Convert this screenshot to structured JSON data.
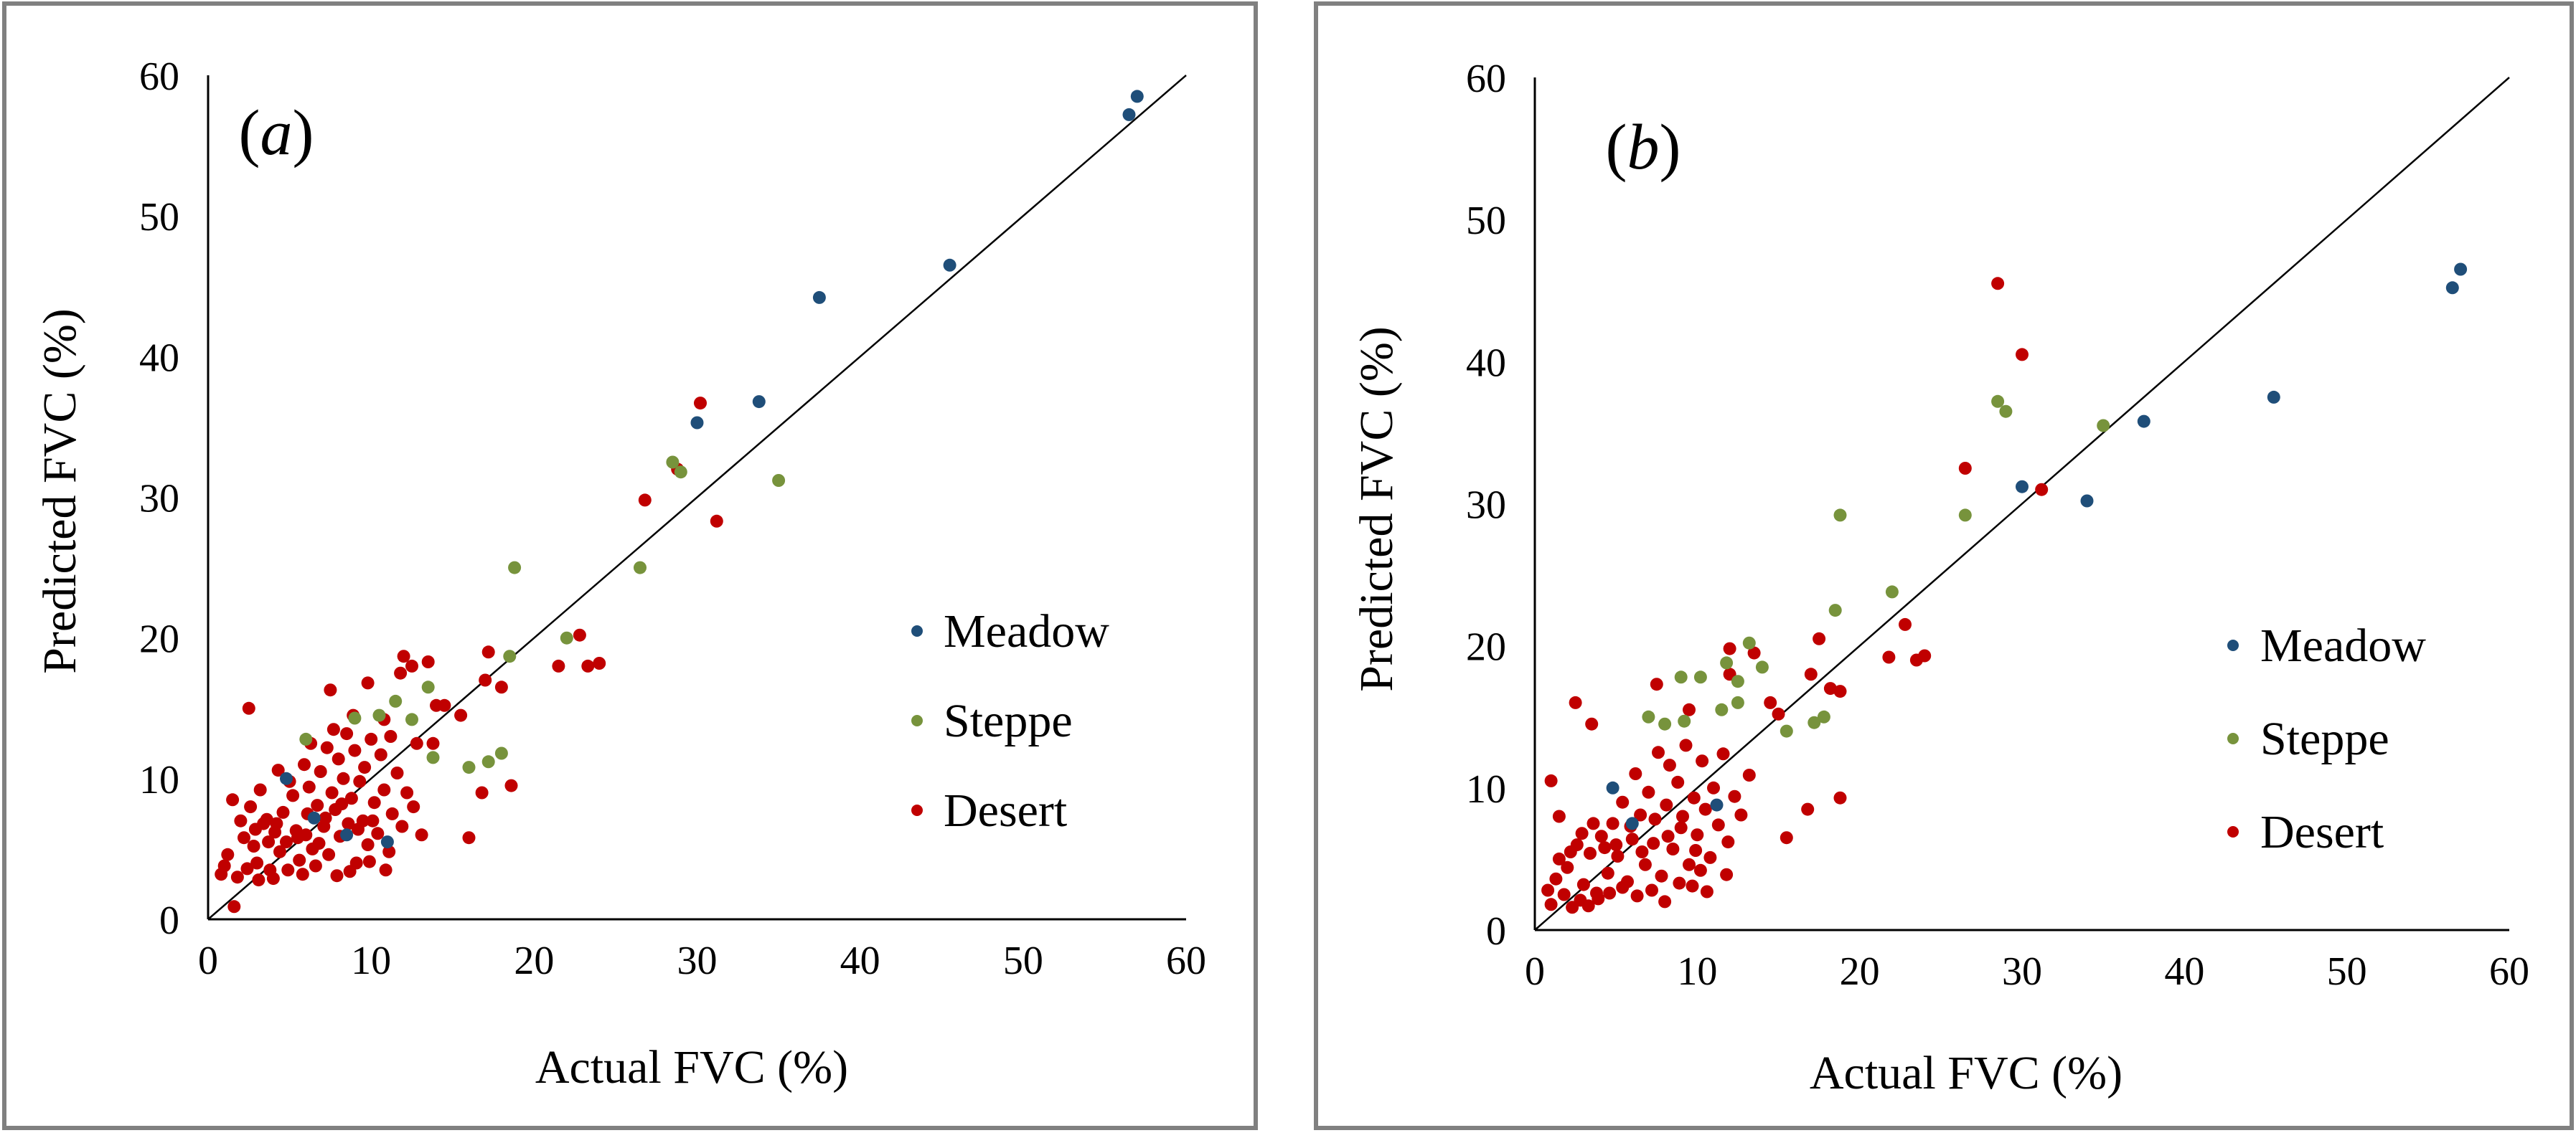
{
  "colors": {
    "meadow": "#1F4E79",
    "steppe": "#77933C",
    "desert": "#C00000",
    "frame": "#808080",
    "line": "#000000"
  },
  "chart_data": [
    {
      "type": "scatter",
      "panel_label": "a",
      "xlabel": "Actual  FVC (%)",
      "ylabel": "Predicted  FVC (%)",
      "xlim": [
        0,
        60
      ],
      "ylim": [
        0,
        60
      ],
      "xticks": [
        "0",
        "10",
        "20",
        "30",
        "40",
        "50",
        "60"
      ],
      "yticks": [
        "0",
        "10",
        "20",
        "30",
        "40",
        "50",
        "60"
      ],
      "reference_line": "1:1",
      "legend": [
        "Meadow",
        "Steppe",
        "Desert"
      ],
      "series": [
        {
          "name": "Meadow",
          "points": [
            [
              57.0,
              58.5
            ],
            [
              56.5,
              57.2
            ],
            [
              45.5,
              46.5
            ],
            [
              37.5,
              44.2
            ],
            [
              33.8,
              36.8
            ],
            [
              30.0,
              35.3
            ],
            [
              4.8,
              10.0
            ],
            [
              6.5,
              7.2
            ],
            [
              8.5,
              6.0
            ],
            [
              11.0,
              5.5
            ]
          ]
        },
        {
          "name": "Steppe",
          "points": [
            [
              28.5,
              32.5
            ],
            [
              29.0,
              31.8
            ],
            [
              35.0,
              31.2
            ],
            [
              18.8,
              25.0
            ],
            [
              26.5,
              25.0
            ],
            [
              22.0,
              20.0
            ],
            [
              18.5,
              18.7
            ],
            [
              13.5,
              16.5
            ],
            [
              11.5,
              15.5
            ],
            [
              12.5,
              14.2
            ],
            [
              13.8,
              11.5
            ],
            [
              16.0,
              10.8
            ],
            [
              17.2,
              11.2
            ],
            [
              18.0,
              11.8
            ],
            [
              10.5,
              14.5
            ],
            [
              9.0,
              14.3
            ],
            [
              6.0,
              12.8
            ]
          ]
        },
        {
          "name": "Desert",
          "points": [
            [
              30.2,
              36.7
            ],
            [
              28.8,
              32.0
            ],
            [
              26.8,
              29.8
            ],
            [
              31.2,
              28.3
            ],
            [
              22.8,
              20.2
            ],
            [
              21.5,
              18.0
            ],
            [
              23.3,
              18.0
            ],
            [
              24.0,
              18.2
            ],
            [
              17.2,
              19.0
            ],
            [
              17.0,
              17.0
            ],
            [
              18.0,
              16.5
            ],
            [
              16.8,
              9.0
            ],
            [
              18.6,
              9.5
            ],
            [
              16.0,
              5.8
            ],
            [
              15.5,
              14.5
            ],
            [
              12.0,
              18.7
            ],
            [
              13.5,
              18.3
            ],
            [
              14.0,
              15.2
            ],
            [
              14.5,
              15.2
            ],
            [
              13.8,
              12.5
            ],
            [
              2.5,
              15.0
            ],
            [
              1.6,
              0.9
            ],
            [
              0.8,
              3.2
            ],
            [
              1.5,
              8.5
            ],
            [
              12.5,
              18.0
            ],
            [
              11.8,
              17.5
            ],
            [
              7.5,
              16.3
            ],
            [
              9.8,
              16.8
            ],
            [
              10.8,
              14.2
            ],
            [
              11.2,
              13.0
            ],
            [
              12.8,
              12.5
            ],
            [
              2.0,
              7.0
            ],
            [
              2.2,
              5.8
            ],
            [
              2.8,
              5.2
            ],
            [
              3.0,
              4.0
            ],
            [
              3.4,
              6.8
            ],
            [
              3.6,
              7.1
            ],
            [
              3.8,
              3.5
            ],
            [
              4.1,
              6.2
            ],
            [
              4.4,
              4.8
            ],
            [
              4.6,
              7.6
            ],
            [
              4.8,
              5.5
            ],
            [
              5.2,
              8.8
            ],
            [
              5.4,
              6.3
            ],
            [
              5.6,
              4.2
            ],
            [
              5.9,
              11.0
            ],
            [
              6.1,
              7.5
            ],
            [
              6.2,
              9.4
            ],
            [
              6.4,
              5.0
            ],
            [
              6.7,
              8.1
            ],
            [
              6.9,
              10.5
            ],
            [
              7.1,
              6.6
            ],
            [
              7.3,
              12.2
            ],
            [
              7.4,
              4.6
            ],
            [
              7.6,
              9.0
            ],
            [
              7.8,
              7.8
            ],
            [
              8.0,
              11.4
            ],
            [
              8.1,
              5.9
            ],
            [
              8.3,
              10.0
            ],
            [
              8.5,
              13.2
            ],
            [
              8.6,
              6.8
            ],
            [
              8.8,
              8.6
            ],
            [
              9.0,
              12.0
            ],
            [
              9.1,
              4.0
            ],
            [
              9.3,
              9.8
            ],
            [
              9.5,
              7.0
            ],
            [
              9.6,
              10.8
            ],
            [
              9.8,
              5.3
            ],
            [
              10.0,
              12.8
            ],
            [
              10.2,
              8.3
            ],
            [
              10.4,
              6.1
            ],
            [
              10.6,
              11.7
            ],
            [
              10.8,
              9.2
            ],
            [
              11.1,
              4.8
            ],
            [
              11.3,
              7.5
            ],
            [
              11.6,
              10.4
            ],
            [
              11.9,
              6.6
            ],
            [
              12.2,
              9.0
            ],
            [
              12.6,
              8.0
            ],
            [
              13.1,
              6.0
            ],
            [
              6.3,
              12.5
            ],
            [
              7.7,
              13.5
            ],
            [
              8.9,
              14.5
            ],
            [
              5.0,
              9.8
            ],
            [
              4.3,
              10.6
            ],
            [
              3.2,
              9.2
            ],
            [
              2.6,
              8.0
            ],
            [
              1.2,
              4.6
            ],
            [
              1.0,
              3.8
            ],
            [
              1.8,
              3.0
            ],
            [
              2.4,
              3.6
            ],
            [
              3.1,
              2.8
            ],
            [
              4.0,
              2.9
            ],
            [
              4.9,
              3.5
            ],
            [
              5.8,
              3.2
            ],
            [
              6.6,
              3.8
            ],
            [
              7.9,
              3.1
            ],
            [
              8.7,
              3.4
            ],
            [
              9.9,
              4.1
            ],
            [
              10.9,
              3.5
            ],
            [
              6.0,
              6.0
            ],
            [
              6.8,
              5.4
            ],
            [
              7.2,
              7.2
            ],
            [
              8.2,
              8.2
            ],
            [
              9.2,
              6.4
            ],
            [
              10.1,
              7.0
            ],
            [
              5.5,
              5.8
            ],
            [
              4.2,
              6.8
            ],
            [
              3.7,
              5.5
            ],
            [
              2.9,
              6.4
            ]
          ]
        }
      ]
    },
    {
      "type": "scatter",
      "panel_label": "b",
      "xlabel": "Actual  FVC (%)",
      "ylabel": "Predicted  FVC (%)",
      "xlim": [
        0,
        60
      ],
      "ylim": [
        0,
        60
      ],
      "xticks": [
        "0",
        "10",
        "20",
        "30",
        "40",
        "50",
        "60"
      ],
      "yticks": [
        "0",
        "10",
        "20",
        "30",
        "40",
        "50",
        "60"
      ],
      "reference_line": "1:1",
      "legend": [
        "Meadow",
        "Steppe",
        "Desert"
      ],
      "series": [
        {
          "name": "Meadow",
          "points": [
            [
              57.0,
              46.5
            ],
            [
              56.5,
              45.2
            ],
            [
              45.5,
              37.5
            ],
            [
              37.5,
              35.8
            ],
            [
              34.0,
              30.2
            ],
            [
              30.0,
              31.2
            ],
            [
              11.2,
              8.8
            ],
            [
              4.8,
              10.0
            ],
            [
              6.0,
              7.5
            ]
          ]
        },
        {
          "name": "Steppe",
          "points": [
            [
              28.5,
              37.2
            ],
            [
              29.0,
              36.5
            ],
            [
              35.0,
              35.5
            ],
            [
              18.8,
              29.2
            ],
            [
              26.5,
              29.2
            ],
            [
              22.0,
              23.8
            ],
            [
              18.5,
              22.5
            ],
            [
              13.2,
              20.2
            ],
            [
              11.8,
              18.8
            ],
            [
              14.0,
              18.5
            ],
            [
              12.5,
              17.5
            ],
            [
              9.0,
              17.8
            ],
            [
              10.2,
              17.8
            ],
            [
              11.5,
              15.5
            ],
            [
              17.8,
              15.0
            ],
            [
              17.2,
              14.6
            ],
            [
              15.5,
              14.0
            ],
            [
              8.0,
              14.5
            ],
            [
              7.0,
              15.0
            ],
            [
              9.2,
              14.7
            ],
            [
              12.5,
              16.0
            ]
          ]
        },
        {
          "name": "Desert",
          "points": [
            [
              28.5,
              45.5
            ],
            [
              30.0,
              40.5
            ],
            [
              26.5,
              32.5
            ],
            [
              31.2,
              31.0
            ],
            [
              22.8,
              21.5
            ],
            [
              23.5,
              19.0
            ],
            [
              24.0,
              19.3
            ],
            [
              21.8,
              19.2
            ],
            [
              17.5,
              20.5
            ],
            [
              18.2,
              17.0
            ],
            [
              18.8,
              16.8
            ],
            [
              17.0,
              18.0
            ],
            [
              18.8,
              9.3
            ],
            [
              16.8,
              8.5
            ],
            [
              15.5,
              6.5
            ],
            [
              15.0,
              15.2
            ],
            [
              12.0,
              19.8
            ],
            [
              12.0,
              18.0
            ],
            [
              13.5,
              19.5
            ],
            [
              14.5,
              16.0
            ],
            [
              7.5,
              17.3
            ],
            [
              9.5,
              15.5
            ],
            [
              2.5,
              16.0
            ],
            [
              1.0,
              10.5
            ],
            [
              1.5,
              8.0
            ],
            [
              3.5,
              14.5
            ],
            [
              1.5,
              5.0
            ],
            [
              2.0,
              4.4
            ],
            [
              2.6,
              6.0
            ],
            [
              3.0,
              3.2
            ],
            [
              3.4,
              5.4
            ],
            [
              3.8,
              2.6
            ],
            [
              4.1,
              6.6
            ],
            [
              4.5,
              4.0
            ],
            [
              4.8,
              7.5
            ],
            [
              5.1,
              5.2
            ],
            [
              5.4,
              9.0
            ],
            [
              5.7,
              3.4
            ],
            [
              6.0,
              6.4
            ],
            [
              6.2,
              11.0
            ],
            [
              6.5,
              8.1
            ],
            [
              6.8,
              4.6
            ],
            [
              7.0,
              9.7
            ],
            [
              7.3,
              6.1
            ],
            [
              7.6,
              12.5
            ],
            [
              7.8,
              3.8
            ],
            [
              8.1,
              8.8
            ],
            [
              8.3,
              11.6
            ],
            [
              8.5,
              5.7
            ],
            [
              8.8,
              10.4
            ],
            [
              9.0,
              7.2
            ],
            [
              9.3,
              13.0
            ],
            [
              9.5,
              4.6
            ],
            [
              9.8,
              9.3
            ],
            [
              10.0,
              6.7
            ],
            [
              10.3,
              11.9
            ],
            [
              10.5,
              8.5
            ],
            [
              10.8,
              5.1
            ],
            [
              11.0,
              10.0
            ],
            [
              11.3,
              7.4
            ],
            [
              11.6,
              12.4
            ],
            [
              11.9,
              6.2
            ],
            [
              12.3,
              9.4
            ],
            [
              12.7,
              8.1
            ],
            [
              13.2,
              10.9
            ],
            [
              0.8,
              2.8
            ],
            [
              1.0,
              1.8
            ],
            [
              1.3,
              3.6
            ],
            [
              1.8,
              2.5
            ],
            [
              2.3,
              1.6
            ],
            [
              2.8,
              2.1
            ],
            [
              3.3,
              1.7
            ],
            [
              3.9,
              2.2
            ],
            [
              4.6,
              2.6
            ],
            [
              5.4,
              3.0
            ],
            [
              6.3,
              2.4
            ],
            [
              7.2,
              2.8
            ],
            [
              8.0,
              2.0
            ],
            [
              8.9,
              3.3
            ],
            [
              9.7,
              3.1
            ],
            [
              10.6,
              2.7
            ],
            [
              5.0,
              6.0
            ],
            [
              5.9,
              7.3
            ],
            [
              6.6,
              5.5
            ],
            [
              7.4,
              7.8
            ],
            [
              8.2,
              6.6
            ],
            [
              9.1,
              8.0
            ],
            [
              9.9,
              5.6
            ],
            [
              4.3,
              5.8
            ],
            [
              3.6,
              7.5
            ],
            [
              2.9,
              6.8
            ],
            [
              2.2,
              5.5
            ],
            [
              11.8,
              3.9
            ],
            [
              10.2,
              4.2
            ]
          ]
        }
      ]
    }
  ]
}
